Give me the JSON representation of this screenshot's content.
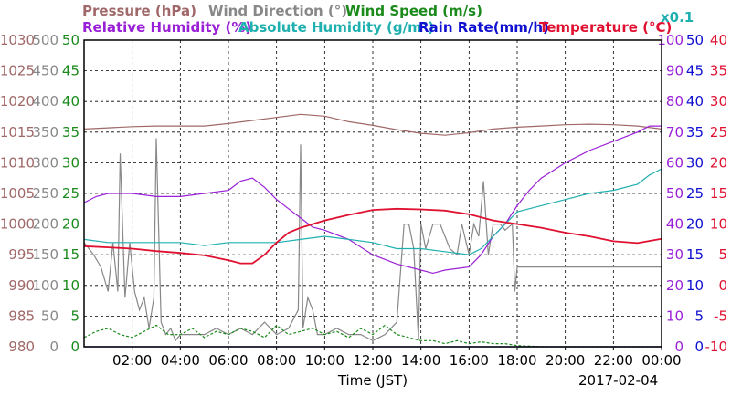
{
  "chart_data": {
    "type": "line",
    "date_label": "2017-02-04",
    "x_axis": {
      "label": "Time (JST)",
      "ticks": [
        "02:00",
        "04:00",
        "06:00",
        "08:00",
        "10:00",
        "12:00",
        "14:00",
        "16:00",
        "18:00",
        "20:00",
        "22:00",
        "00:00"
      ],
      "range_hours": [
        0,
        24
      ]
    },
    "legend": [
      {
        "text": "Pressure (hPa)",
        "color": "#a06868"
      },
      {
        "text": "Wind Direction (°)",
        "color": "#888888"
      },
      {
        "text": "Wind Speed (m/s)",
        "color": "#1a8a1a"
      },
      {
        "text": "Relative Humidity (%)",
        "color": "#9a20d8"
      },
      {
        "text": "Absolute Humidity (g/m³)",
        "color": "#20b0b0"
      },
      {
        "text": "Rain Rate(mm/h)",
        "color": "#1010d0"
      },
      {
        "text": "Temperature (°C)",
        "color": "#e01030"
      },
      {
        "text": "x0.1",
        "color": "#20b0b0"
      }
    ],
    "axes": {
      "pressure": {
        "ylim": [
          980,
          1030
        ],
        "ticks": [
          "980",
          "985",
          "990",
          "995",
          "1000",
          "1005",
          "1010",
          "1015",
          "1020",
          "1025",
          "1030"
        ],
        "color": "#a06868"
      },
      "wind_direction": {
        "ylim": [
          0,
          500
        ],
        "ticks": [
          "0",
          "50",
          "100",
          "150",
          "200",
          "250",
          "300",
          "350",
          "400",
          "450",
          "500"
        ],
        "color": "#888888"
      },
      "wind_speed": {
        "ylim": [
          0,
          50
        ],
        "ticks": [
          "0",
          "5",
          "10",
          "15",
          "20",
          "25",
          "30",
          "35",
          "40",
          "45",
          "50"
        ],
        "color": "#1a8a1a"
      },
      "humidity": {
        "ylim": [
          0,
          100
        ],
        "ticks": [
          "0",
          "10",
          "20",
          "30",
          "40",
          "50",
          "60",
          "70",
          "80",
          "90",
          "100"
        ],
        "color": "#9a20d8"
      },
      "rain_rate": {
        "ylim": [
          0,
          50
        ],
        "ticks": [
          "0",
          "5",
          "10",
          "15",
          "20",
          "25",
          "30",
          "35",
          "40",
          "45",
          "50"
        ],
        "color": "#1010d0"
      },
      "temperature": {
        "ylim": [
          -10,
          40
        ],
        "ticks": [
          "-10",
          "-5",
          "0",
          "5",
          "10",
          "15",
          "20",
          "25",
          "30",
          "35",
          "40"
        ],
        "color": "#e01030"
      }
    },
    "grid": true,
    "series": [
      {
        "name": "Pressure (hPa)",
        "axis": "pressure",
        "color": "#a06868",
        "x": [
          0,
          1,
          2,
          3,
          4,
          5,
          6,
          7,
          8,
          9,
          10,
          11,
          12,
          13,
          14,
          15,
          16,
          17,
          18,
          19,
          20,
          21,
          22,
          23,
          24
        ],
        "y": [
          1015.5,
          1015.7,
          1015.9,
          1016.0,
          1016.0,
          1016.0,
          1016.4,
          1016.9,
          1017.4,
          1017.9,
          1017.6,
          1016.7,
          1016.1,
          1015.4,
          1014.8,
          1014.5,
          1014.9,
          1015.5,
          1015.8,
          1016.0,
          1016.2,
          1016.3,
          1016.2,
          1016.0,
          1015.5
        ]
      },
      {
        "name": "Wind Direction (°)",
        "axis": "wind_direction",
        "color": "#888888",
        "x": [
          0,
          0.4,
          0.7,
          1.0,
          1.2,
          1.4,
          1.5,
          1.7,
          1.9,
          2.1,
          2.3,
          2.5,
          2.7,
          2.9,
          3.0,
          3.2,
          3.4,
          3.6,
          3.8,
          4.0,
          4.5,
          5.0,
          5.5,
          6.0,
          6.5,
          7.0,
          7.5,
          8.0,
          8.5,
          8.9,
          9.0,
          9.1,
          9.3,
          9.5,
          9.7,
          10.0,
          10.5,
          11.0,
          11.5,
          12.0,
          12.5,
          13.0,
          13.3,
          13.5,
          13.7,
          13.9,
          14.0,
          14.2,
          14.5,
          14.8,
          15.0,
          15.2,
          15.5,
          15.7,
          16.0,
          16.2,
          16.4,
          16.6,
          16.8,
          17.0,
          17.3,
          17.5,
          17.8,
          17.9,
          18.0,
          18.2,
          18.5,
          19.0,
          20.0,
          21.0,
          22.0,
          23.0,
          24.0
        ],
        "y": [
          170,
          150,
          130,
          90,
          170,
          90,
          315,
          80,
          170,
          90,
          60,
          80,
          30,
          80,
          340,
          40,
          20,
          30,
          10,
          20,
          20,
          20,
          30,
          20,
          30,
          20,
          40,
          20,
          30,
          60,
          330,
          30,
          80,
          60,
          20,
          20,
          30,
          20,
          20,
          10,
          20,
          40,
          200,
          200,
          160,
          10,
          200,
          160,
          200,
          200,
          180,
          160,
          150,
          200,
          150,
          200,
          180,
          270,
          150,
          200,
          200,
          190,
          200,
          90,
          130,
          130,
          130,
          130,
          130,
          130,
          130,
          130,
          130
        ]
      },
      {
        "name": "Wind Speed (m/s)",
        "axis": "wind_speed",
        "color": "#1a8a1a",
        "x": [
          0,
          0.5,
          1.0,
          1.5,
          2.0,
          2.5,
          3.0,
          3.5,
          4.0,
          4.5,
          5.0,
          5.5,
          6.0,
          6.5,
          7.0,
          7.5,
          8.0,
          8.5,
          9.0,
          9.5,
          10.0,
          10.5,
          11.0,
          11.5,
          12.0,
          12.5,
          13.0,
          13.5,
          14.0,
          14.5,
          15.0,
          15.5,
          16.0,
          16.5,
          17.0,
          17.5,
          18.0,
          19.0,
          20.0,
          21.0,
          22.0,
          23.0,
          24.0
        ],
        "y": [
          1.5,
          2.5,
          3.0,
          2.0,
          1.5,
          2.5,
          3.5,
          2.0,
          2.0,
          3.0,
          1.5,
          2.5,
          2.0,
          3.0,
          2.5,
          1.5,
          3.5,
          2.0,
          2.5,
          3.0,
          2.0,
          2.5,
          1.5,
          3.0,
          2.0,
          3.5,
          2.0,
          1.5,
          1.0,
          1.0,
          0.5,
          1.0,
          0.5,
          0.8,
          0.5,
          0.5,
          0.2,
          0,
          0,
          0,
          0,
          0,
          0
        ]
      },
      {
        "name": "Relative Humidity (%)",
        "axis": "humidity",
        "color": "#9a20d8",
        "x": [
          0,
          0.5,
          1.0,
          2.0,
          3.0,
          4.0,
          5.0,
          6.0,
          6.5,
          7.0,
          7.5,
          8.0,
          8.5,
          9.0,
          9.5,
          10.0,
          11.0,
          12.0,
          13.0,
          14.0,
          14.5,
          15.0,
          16.0,
          16.5,
          17.0,
          17.5,
          18.0,
          18.5,
          19.0,
          20.0,
          21.0,
          22.0,
          23.0,
          23.5,
          24.0
        ],
        "y": [
          47,
          49,
          50,
          50,
          49,
          49,
          50,
          51,
          54,
          55,
          52,
          48,
          45,
          42,
          39,
          38,
          35,
          30,
          27,
          25,
          24,
          25,
          26,
          30,
          36,
          40,
          46,
          51,
          55,
          60,
          64,
          67,
          70,
          72,
          72
        ]
      },
      {
        "name": "Absolute Humidity (g/m³)",
        "axis": "humidity",
        "color": "#20b0b0",
        "x": [
          0,
          1,
          2,
          3,
          4,
          5,
          6,
          7,
          8,
          9,
          10,
          11,
          12,
          13,
          14,
          15,
          16,
          16.5,
          17,
          17.5,
          18,
          19,
          20,
          21,
          22,
          23,
          23.5,
          24
        ],
        "y": [
          35,
          34,
          34,
          34,
          34,
          33,
          34,
          34,
          34,
          35,
          36,
          35,
          34,
          32,
          32,
          31,
          30,
          32,
          36,
          40,
          44,
          46,
          48,
          50,
          51,
          53,
          56,
          58
        ]
      },
      {
        "name": "Rain Rate(mm/h)",
        "axis": "rain_rate",
        "color": "#1010d0",
        "x": [
          0,
          24
        ],
        "y": [
          0,
          0
        ]
      },
      {
        "name": "Temperature (°C)",
        "axis": "temperature",
        "color": "#e01030",
        "x": [
          0,
          1,
          2,
          3,
          4,
          5,
          6,
          6.5,
          7,
          7.5,
          8,
          8.5,
          9,
          9.5,
          10,
          11,
          12,
          13,
          14,
          15,
          16,
          17,
          18,
          19,
          20,
          21,
          22,
          23,
          24
        ],
        "y": [
          6.4,
          6.2,
          6.0,
          5.6,
          5.3,
          4.9,
          4.1,
          3.6,
          3.6,
          5.0,
          7.0,
          8.6,
          9.4,
          10.0,
          10.6,
          11.5,
          12.3,
          12.5,
          12.4,
          12.2,
          11.6,
          10.6,
          10.0,
          9.4,
          8.6,
          8.0,
          7.2,
          6.9,
          7.6
        ]
      }
    ]
  }
}
